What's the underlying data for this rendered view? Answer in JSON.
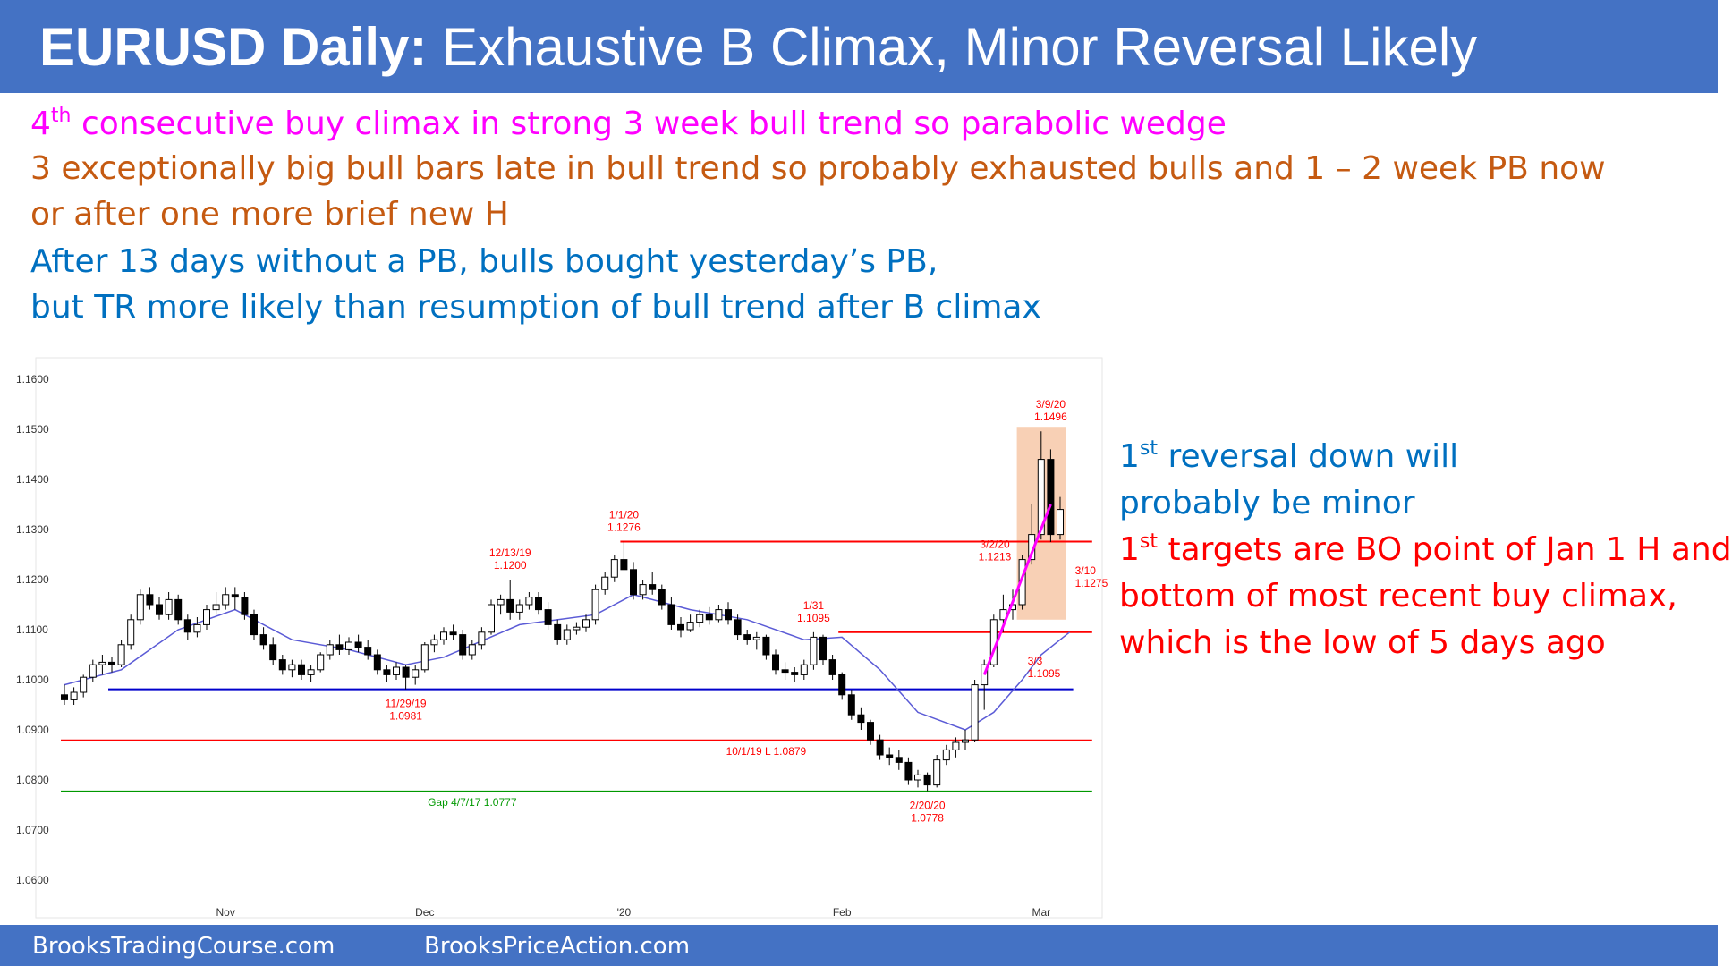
{
  "header": {
    "title_bold": "EURUSD Daily:",
    "title_rest": "Exhaustive B Climax, Minor Reversal Likely"
  },
  "notes": {
    "line1_num": "4",
    "line1_sup": "th",
    "line1_text": "consecutive buy climax in strong 3 week bull trend so parabolic wedge",
    "line2": "3 exceptionally big bull bars late in bull trend so probably exhausted bulls and 1 – 2 week PB now",
    "line3": "or after one more brief new H",
    "line4": "After 13 days without a PB, bulls bought yesterday’s PB,",
    "line5": "but TR more likely than resumption of bull trend after B climax"
  },
  "side_notes": {
    "r1_num": "1",
    "r1_sup": "st",
    "r1_text": "reversal down will",
    "r2": "probably be minor",
    "r3_num": "1",
    "r3_sup": "st",
    "r3_text": "targets are BO point of Jan 1 H and",
    "r4": "bottom of most recent buy climax,",
    "r5": "which is the low of 5 days ago"
  },
  "colors": {
    "title_bar": "#4472c4",
    "magenta": "#ff00ff",
    "orange": "#c55a11",
    "blue": "#0070c0",
    "red": "#ff0000",
    "support_blue": "#0000cc",
    "gap_green": "#009900",
    "ema": "#5b5bd6",
    "climax_box": "#f4b183"
  },
  "chart_data": {
    "type": "candlestick",
    "title": "",
    "ylim": [
      1.055,
      1.165
    ],
    "ylabel": "",
    "y_ticks": [
      "1.1600",
      "1.1500",
      "1.1400",
      "1.1300",
      "1.1200",
      "1.1100",
      "1.1000",
      "1.0900",
      "1.0800",
      "1.0700",
      "1.0600"
    ],
    "x_ticks": [
      {
        "label": "Nov",
        "bar": 17
      },
      {
        "label": "Dec",
        "bar": 38
      },
      {
        "label": "'20",
        "bar": 59
      },
      {
        "label": "Feb",
        "bar": 82
      },
      {
        "label": "Mar",
        "bar": 103
      }
    ],
    "candles": [
      [
        1.097,
        1.099,
        1.095,
        1.096
      ],
      [
        1.096,
        1.0985,
        1.095,
        1.0975
      ],
      [
        1.0975,
        1.101,
        1.0965,
        1.1005
      ],
      [
        1.1005,
        1.104,
        1.0995,
        1.103
      ],
      [
        1.103,
        1.105,
        1.101,
        1.1035
      ],
      [
        1.1035,
        1.1045,
        1.1015,
        1.103
      ],
      [
        1.103,
        1.108,
        1.1025,
        1.107
      ],
      [
        1.107,
        1.113,
        1.106,
        1.112
      ],
      [
        1.112,
        1.118,
        1.111,
        1.117
      ],
      [
        1.117,
        1.1185,
        1.114,
        1.115
      ],
      [
        1.115,
        1.1165,
        1.112,
        1.113
      ],
      [
        1.113,
        1.1175,
        1.112,
        1.116
      ],
      [
        1.116,
        1.117,
        1.111,
        1.112
      ],
      [
        1.112,
        1.113,
        1.108,
        1.1095
      ],
      [
        1.1095,
        1.1125,
        1.1085,
        1.111
      ],
      [
        1.111,
        1.115,
        1.11,
        1.114
      ],
      [
        1.114,
        1.1175,
        1.113,
        1.115
      ],
      [
        1.115,
        1.1185,
        1.114,
        1.117
      ],
      [
        1.117,
        1.1185,
        1.114,
        1.1165
      ],
      [
        1.1165,
        1.1175,
        1.112,
        1.113
      ],
      [
        1.113,
        1.114,
        1.108,
        1.109
      ],
      [
        1.109,
        1.1105,
        1.106,
        1.107
      ],
      [
        1.107,
        1.1085,
        1.103,
        1.104
      ],
      [
        1.104,
        1.105,
        1.101,
        1.102
      ],
      [
        1.102,
        1.104,
        1.1005,
        1.103
      ],
      [
        1.103,
        1.104,
        1.1,
        1.101
      ],
      [
        1.101,
        1.103,
        1.0995,
        1.102
      ],
      [
        1.102,
        1.1055,
        1.1015,
        1.105
      ],
      [
        1.105,
        1.108,
        1.104,
        1.107
      ],
      [
        1.107,
        1.109,
        1.105,
        1.106
      ],
      [
        1.106,
        1.1085,
        1.105,
        1.1075
      ],
      [
        1.1075,
        1.109,
        1.1055,
        1.1065
      ],
      [
        1.1065,
        1.108,
        1.104,
        1.105
      ],
      [
        1.105,
        1.106,
        1.101,
        1.102
      ],
      [
        1.102,
        1.103,
        1.0995,
        1.101
      ],
      [
        1.101,
        1.1035,
        1.1,
        1.1025
      ],
      [
        1.1025,
        1.103,
        1.0981,
        1.1005
      ],
      [
        1.1005,
        1.103,
        1.099,
        1.102
      ],
      [
        1.102,
        1.1075,
        1.1015,
        1.107
      ],
      [
        1.107,
        1.109,
        1.1055,
        1.108
      ],
      [
        1.108,
        1.1105,
        1.107,
        1.1095
      ],
      [
        1.1095,
        1.111,
        1.108,
        1.109
      ],
      [
        1.109,
        1.11,
        1.104,
        1.105
      ],
      [
        1.105,
        1.108,
        1.104,
        1.107
      ],
      [
        1.107,
        1.1105,
        1.106,
        1.1095
      ],
      [
        1.1095,
        1.116,
        1.109,
        1.115
      ],
      [
        1.115,
        1.117,
        1.113,
        1.116
      ],
      [
        1.116,
        1.12,
        1.112,
        1.1135
      ],
      [
        1.1135,
        1.116,
        1.112,
        1.115
      ],
      [
        1.115,
        1.1175,
        1.114,
        1.1165
      ],
      [
        1.1165,
        1.1175,
        1.113,
        1.114
      ],
      [
        1.114,
        1.1155,
        1.11,
        1.111
      ],
      [
        1.111,
        1.112,
        1.107,
        1.108
      ],
      [
        1.108,
        1.111,
        1.107,
        1.11
      ],
      [
        1.11,
        1.1115,
        1.109,
        1.1105
      ],
      [
        1.1105,
        1.113,
        1.1095,
        1.112
      ],
      [
        1.112,
        1.119,
        1.111,
        1.118
      ],
      [
        1.118,
        1.1215,
        1.117,
        1.1205
      ],
      [
        1.1205,
        1.125,
        1.1195,
        1.124
      ],
      [
        1.124,
        1.1276,
        1.123,
        1.122
      ],
      [
        1.122,
        1.1235,
        1.116,
        1.117
      ],
      [
        1.117,
        1.12,
        1.116,
        1.119
      ],
      [
        1.119,
        1.1215,
        1.117,
        1.118
      ],
      [
        1.118,
        1.119,
        1.114,
        1.115
      ],
      [
        1.115,
        1.1165,
        1.11,
        1.111
      ],
      [
        1.111,
        1.1125,
        1.1085,
        1.11
      ],
      [
        1.11,
        1.113,
        1.1095,
        1.1115
      ],
      [
        1.1115,
        1.114,
        1.1105,
        1.113
      ],
      [
        1.113,
        1.1145,
        1.111,
        1.112
      ],
      [
        1.112,
        1.115,
        1.1115,
        1.114
      ],
      [
        1.114,
        1.1155,
        1.111,
        1.112
      ],
      [
        1.112,
        1.113,
        1.108,
        1.109
      ],
      [
        1.109,
        1.11,
        1.107,
        1.108
      ],
      [
        1.108,
        1.1095,
        1.106,
        1.1085
      ],
      [
        1.1085,
        1.109,
        1.104,
        1.105
      ],
      [
        1.105,
        1.106,
        1.101,
        1.102
      ],
      [
        1.102,
        1.1035,
        1.1,
        1.1015
      ],
      [
        1.1015,
        1.1025,
        1.0995,
        1.101
      ],
      [
        1.101,
        1.104,
        1.1,
        1.103
      ],
      [
        1.103,
        1.1095,
        1.102,
        1.1085
      ],
      [
        1.1085,
        1.109,
        1.103,
        1.104
      ],
      [
        1.104,
        1.105,
        1.1,
        1.101
      ],
      [
        1.101,
        1.1015,
        1.096,
        1.097
      ],
      [
        1.097,
        1.098,
        1.092,
        1.093
      ],
      [
        1.093,
        1.0945,
        1.09,
        1.0915
      ],
      [
        1.0915,
        1.092,
        1.087,
        1.088
      ],
      [
        1.088,
        1.089,
        1.084,
        1.085
      ],
      [
        1.085,
        1.0865,
        1.083,
        1.0845
      ],
      [
        1.0845,
        1.086,
        1.082,
        1.0835
      ],
      [
        1.0835,
        1.0845,
        1.079,
        1.08
      ],
      [
        1.08,
        1.082,
        1.0785,
        1.081
      ],
      [
        1.081,
        1.0815,
        1.0778,
        1.079
      ],
      [
        1.079,
        1.085,
        1.0785,
        1.084
      ],
      [
        1.084,
        1.087,
        1.083,
        1.086
      ],
      [
        1.086,
        1.0885,
        1.0845,
        1.0875
      ],
      [
        1.0875,
        1.09,
        1.086,
        1.088
      ],
      [
        1.088,
        1.1,
        1.0875,
        1.099
      ],
      [
        1.099,
        1.104,
        1.094,
        1.103
      ],
      [
        1.103,
        1.113,
        1.1025,
        1.112
      ],
      [
        1.112,
        1.117,
        1.1095,
        1.114
      ],
      [
        1.114,
        1.118,
        1.112,
        1.115
      ],
      [
        1.115,
        1.125,
        1.114,
        1.124
      ],
      [
        1.124,
        1.135,
        1.123,
        1.129
      ],
      [
        1.129,
        1.1496,
        1.128,
        1.144
      ],
      [
        1.144,
        1.146,
        1.1275,
        1.129
      ],
      [
        1.129,
        1.1365,
        1.128,
        1.134
      ]
    ],
    "ema": [
      [
        0,
        1.099
      ],
      [
        6,
        1.102
      ],
      [
        12,
        1.11
      ],
      [
        18,
        1.114
      ],
      [
        24,
        1.108
      ],
      [
        30,
        1.106
      ],
      [
        36,
        1.103
      ],
      [
        40,
        1.1045
      ],
      [
        48,
        1.111
      ],
      [
        56,
        1.113
      ],
      [
        60,
        1.117
      ],
      [
        66,
        1.114
      ],
      [
        72,
        1.112
      ],
      [
        78,
        1.108
      ],
      [
        82,
        1.1085
      ],
      [
        86,
        1.102
      ],
      [
        90,
        1.0935
      ],
      [
        95,
        1.09
      ],
      [
        98,
        1.0935
      ],
      [
        101,
        1.1
      ],
      [
        103,
        1.105
      ],
      [
        106,
        1.1095
      ]
    ],
    "lines": [
      {
        "y": 1.1276,
        "from": 59,
        "to": 108,
        "color": "red"
      },
      {
        "y": 1.1095,
        "from": 82,
        "to": 108,
        "color": "red"
      },
      {
        "y": 1.0981,
        "from": 5,
        "to": 106,
        "color": "blue"
      },
      {
        "y": 1.0879,
        "from": 0,
        "to": 108,
        "color": "red"
      },
      {
        "y": 1.0777,
        "from": 0,
        "to": 108,
        "color": "green"
      }
    ],
    "wedge_line": {
      "from": [
        97,
        1.101
      ],
      "to": [
        104,
        1.135
      ]
    },
    "climax_box": {
      "from": 101,
      "to": 105,
      "y_low": 1.112,
      "y_high": 1.1505
    },
    "annotations": [
      {
        "bar": 36,
        "line1": "11/29/19",
        "line2": "1.0981",
        "price": 1.0981,
        "pos": "below"
      },
      {
        "bar": 47,
        "line1": "12/13/19",
        "line2": "1.1200",
        "price": 1.12,
        "pos": "above"
      },
      {
        "bar": 59,
        "line1": "1/1/20",
        "line2": "1.1276",
        "price": 1.1276,
        "pos": "above"
      },
      {
        "bar": 79,
        "line1": "1/31",
        "line2": "1.1095",
        "price": 1.1095,
        "pos": "above"
      },
      {
        "bar": 91,
        "line1": "2/20/20",
        "line2": "1.0778",
        "price": 1.0778,
        "pos": "below"
      },
      {
        "bar": 100,
        "line1": "3/2/20",
        "line2": "1.1213",
        "price": 1.1213,
        "pos": "left"
      },
      {
        "bar": 101,
        "line1": "3/3",
        "line2": "1.1095",
        "price": 1.1095,
        "pos": "below-right"
      },
      {
        "bar": 104,
        "line1": "3/9/20",
        "line2": "1.1496",
        "price": 1.1496,
        "pos": "above"
      },
      {
        "bar": 106,
        "line1": "3/10",
        "line2": "1.1275",
        "price": 1.1275,
        "pos": "below-right"
      }
    ],
    "line_labels": [
      {
        "text": "10/1/19 L 1.0879",
        "bar": 74,
        "price": 1.0879
      },
      {
        "text": "Gap 4/7/17 1.0777",
        "bar": 43,
        "price": 1.0777
      }
    ]
  },
  "footer": {
    "left": "BrooksTradingCourse.com",
    "right": "BrooksPriceAction.com"
  }
}
